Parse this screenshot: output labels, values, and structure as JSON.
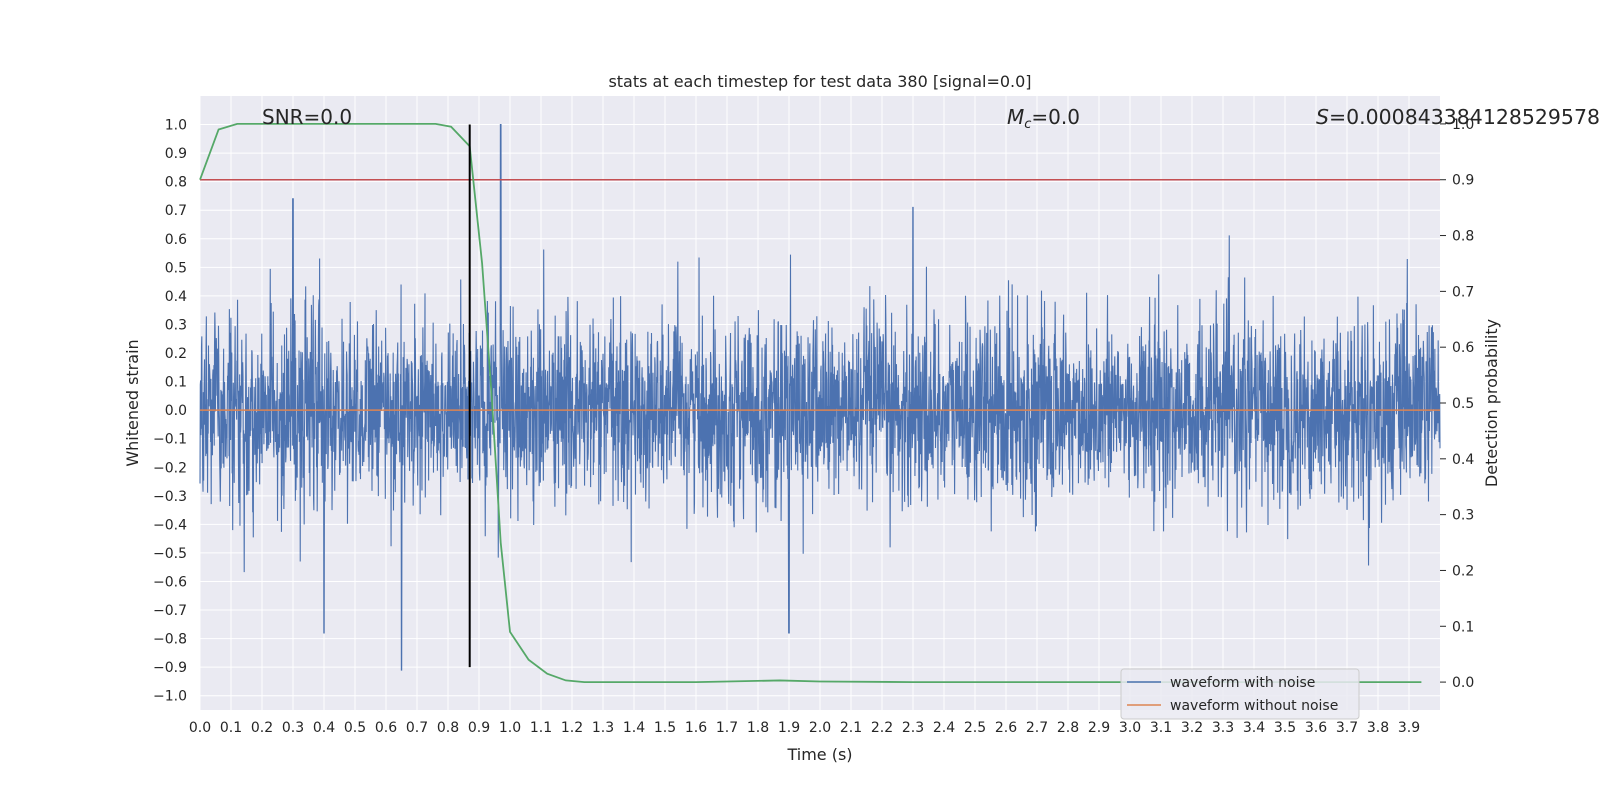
{
  "chart_data": {
    "type": "line",
    "title": "stats at each timestep for test data 380 [signal=0.0]",
    "xlabel": "Time (s)",
    "ylabel": "Whitened strain",
    "y2label": "Detection probability",
    "xlim": [
      0.0,
      4.0
    ],
    "ylim": [
      -1.05,
      1.1
    ],
    "y2lim": [
      -0.05,
      1.05
    ],
    "x_ticks": [
      "0.0",
      "0.1",
      "0.2",
      "0.3",
      "0.4",
      "0.5",
      "0.6",
      "0.7",
      "0.8",
      "0.9",
      "1.0",
      "1.1",
      "1.2",
      "1.3",
      "1.4",
      "1.5",
      "1.6",
      "1.7",
      "1.8",
      "1.9",
      "2.0",
      "2.1",
      "2.2",
      "2.3",
      "2.4",
      "2.5",
      "2.6",
      "2.7",
      "2.8",
      "2.9",
      "3.0",
      "3.1",
      "3.2",
      "3.3",
      "3.4",
      "3.5",
      "3.6",
      "3.7",
      "3.8",
      "3.9"
    ],
    "y_ticks": [
      "1.0",
      "0.9",
      "0.8",
      "0.7",
      "0.6",
      "0.5",
      "0.4",
      "0.3",
      "0.2",
      "0.1",
      "0.0",
      "−0.1",
      "−0.2",
      "−0.3",
      "−0.4",
      "−0.5",
      "−0.6",
      "−0.7",
      "−0.8",
      "−0.9",
      "−1.0"
    ],
    "y2_ticks": [
      "1.0",
      "0.9",
      "0.8",
      "0.7",
      "0.6",
      "0.5",
      "0.4",
      "0.3",
      "0.2",
      "0.1",
      "0.0"
    ],
    "grid": true,
    "legend_position": "bottom-right",
    "annotations": {
      "snr": "SNR=0.0",
      "mc_symbol": "M",
      "mc_sub": "c",
      "mc_value": "=0.0",
      "s_symbol": "S",
      "s_value": "=0.000843384128529578"
    },
    "series": [
      {
        "name": "waveform with noise",
        "color": "#4c72b0",
        "axis": "left",
        "description_note_removed": true,
        "x_range": [
          0.0,
          4.0
        ],
        "amplitude_range": [
          -0.91,
          1.0
        ],
        "peaks": [
          [
            0.65,
            -0.91
          ],
          [
            0.97,
            1.0
          ],
          [
            0.3,
            0.74
          ],
          [
            0.4,
            -0.78
          ],
          [
            1.9,
            -0.78
          ],
          [
            2.3,
            0.71
          ]
        ]
      },
      {
        "name": "waveform without noise",
        "color": "#dd8452",
        "axis": "left",
        "x": [
          0.0,
          4.0
        ],
        "y": [
          0.0,
          0.0
        ]
      },
      {
        "name": "",
        "color": "#55a868",
        "axis": "right",
        "x": [
          0.0,
          0.06,
          0.12,
          0.2,
          0.3,
          0.4,
          0.5,
          0.6,
          0.7,
          0.76,
          0.81,
          0.87,
          0.91,
          0.94,
          0.97,
          1.0,
          1.06,
          1.12,
          1.18,
          1.24,
          1.4,
          1.6,
          1.7,
          1.87,
          2.0,
          2.3,
          2.6,
          3.0,
          3.3,
          3.6,
          3.94
        ],
        "y": [
          0.9,
          0.99,
          1.0,
          1.0,
          1.0,
          1.0,
          1.0,
          1.0,
          1.0,
          1.0,
          0.995,
          0.96,
          0.75,
          0.52,
          0.25,
          0.09,
          0.04,
          0.015,
          0.003,
          0.0,
          0.0,
          0.0,
          0.001,
          0.003,
          0.001,
          0.0,
          0.0,
          0.0,
          0.0,
          0.0,
          0.0
        ]
      }
    ],
    "threshold": {
      "axis": "right",
      "value": 0.9,
      "color": "#c44e52"
    },
    "vline": {
      "x": 0.87,
      "color": "#000000",
      "ymin": -0.9,
      "ymax": 1.0
    }
  }
}
